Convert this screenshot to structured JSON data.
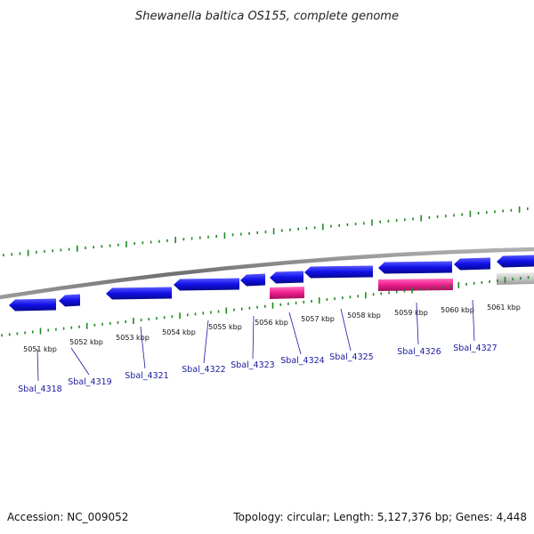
{
  "title": "Shewanella baltica OS155, complete genome",
  "footer": {
    "accession": "Accession: NC_009052",
    "summary": "Topology: circular; Length: 5,127,376 bp; Genes: 4,448"
  },
  "colors": {
    "forward_gene": "#1010e8",
    "rna_feature": "#ee1c8c",
    "other_feature": "#c8c8c8",
    "backbone": "#808080",
    "gc_ticks": "#1e8a1e",
    "label": "#1a1aa0"
  },
  "kbp_labels": [
    "5051 kbp",
    "5052 kbp",
    "5053 kbp",
    "5054 kbp",
    "5055 kbp",
    "5056 kbp",
    "5057 kbp",
    "5058 kbp",
    "5059 kbp",
    "5060 kbp",
    "5061 kbp"
  ],
  "gene_labels": [
    "Sbal_4318",
    "Sbal_4319",
    "Sbal_4321",
    "Sbal_4322",
    "Sbal_4323",
    "Sbal_4324",
    "Sbal_4325",
    "Sbal_4326",
    "Sbal_4327"
  ]
}
